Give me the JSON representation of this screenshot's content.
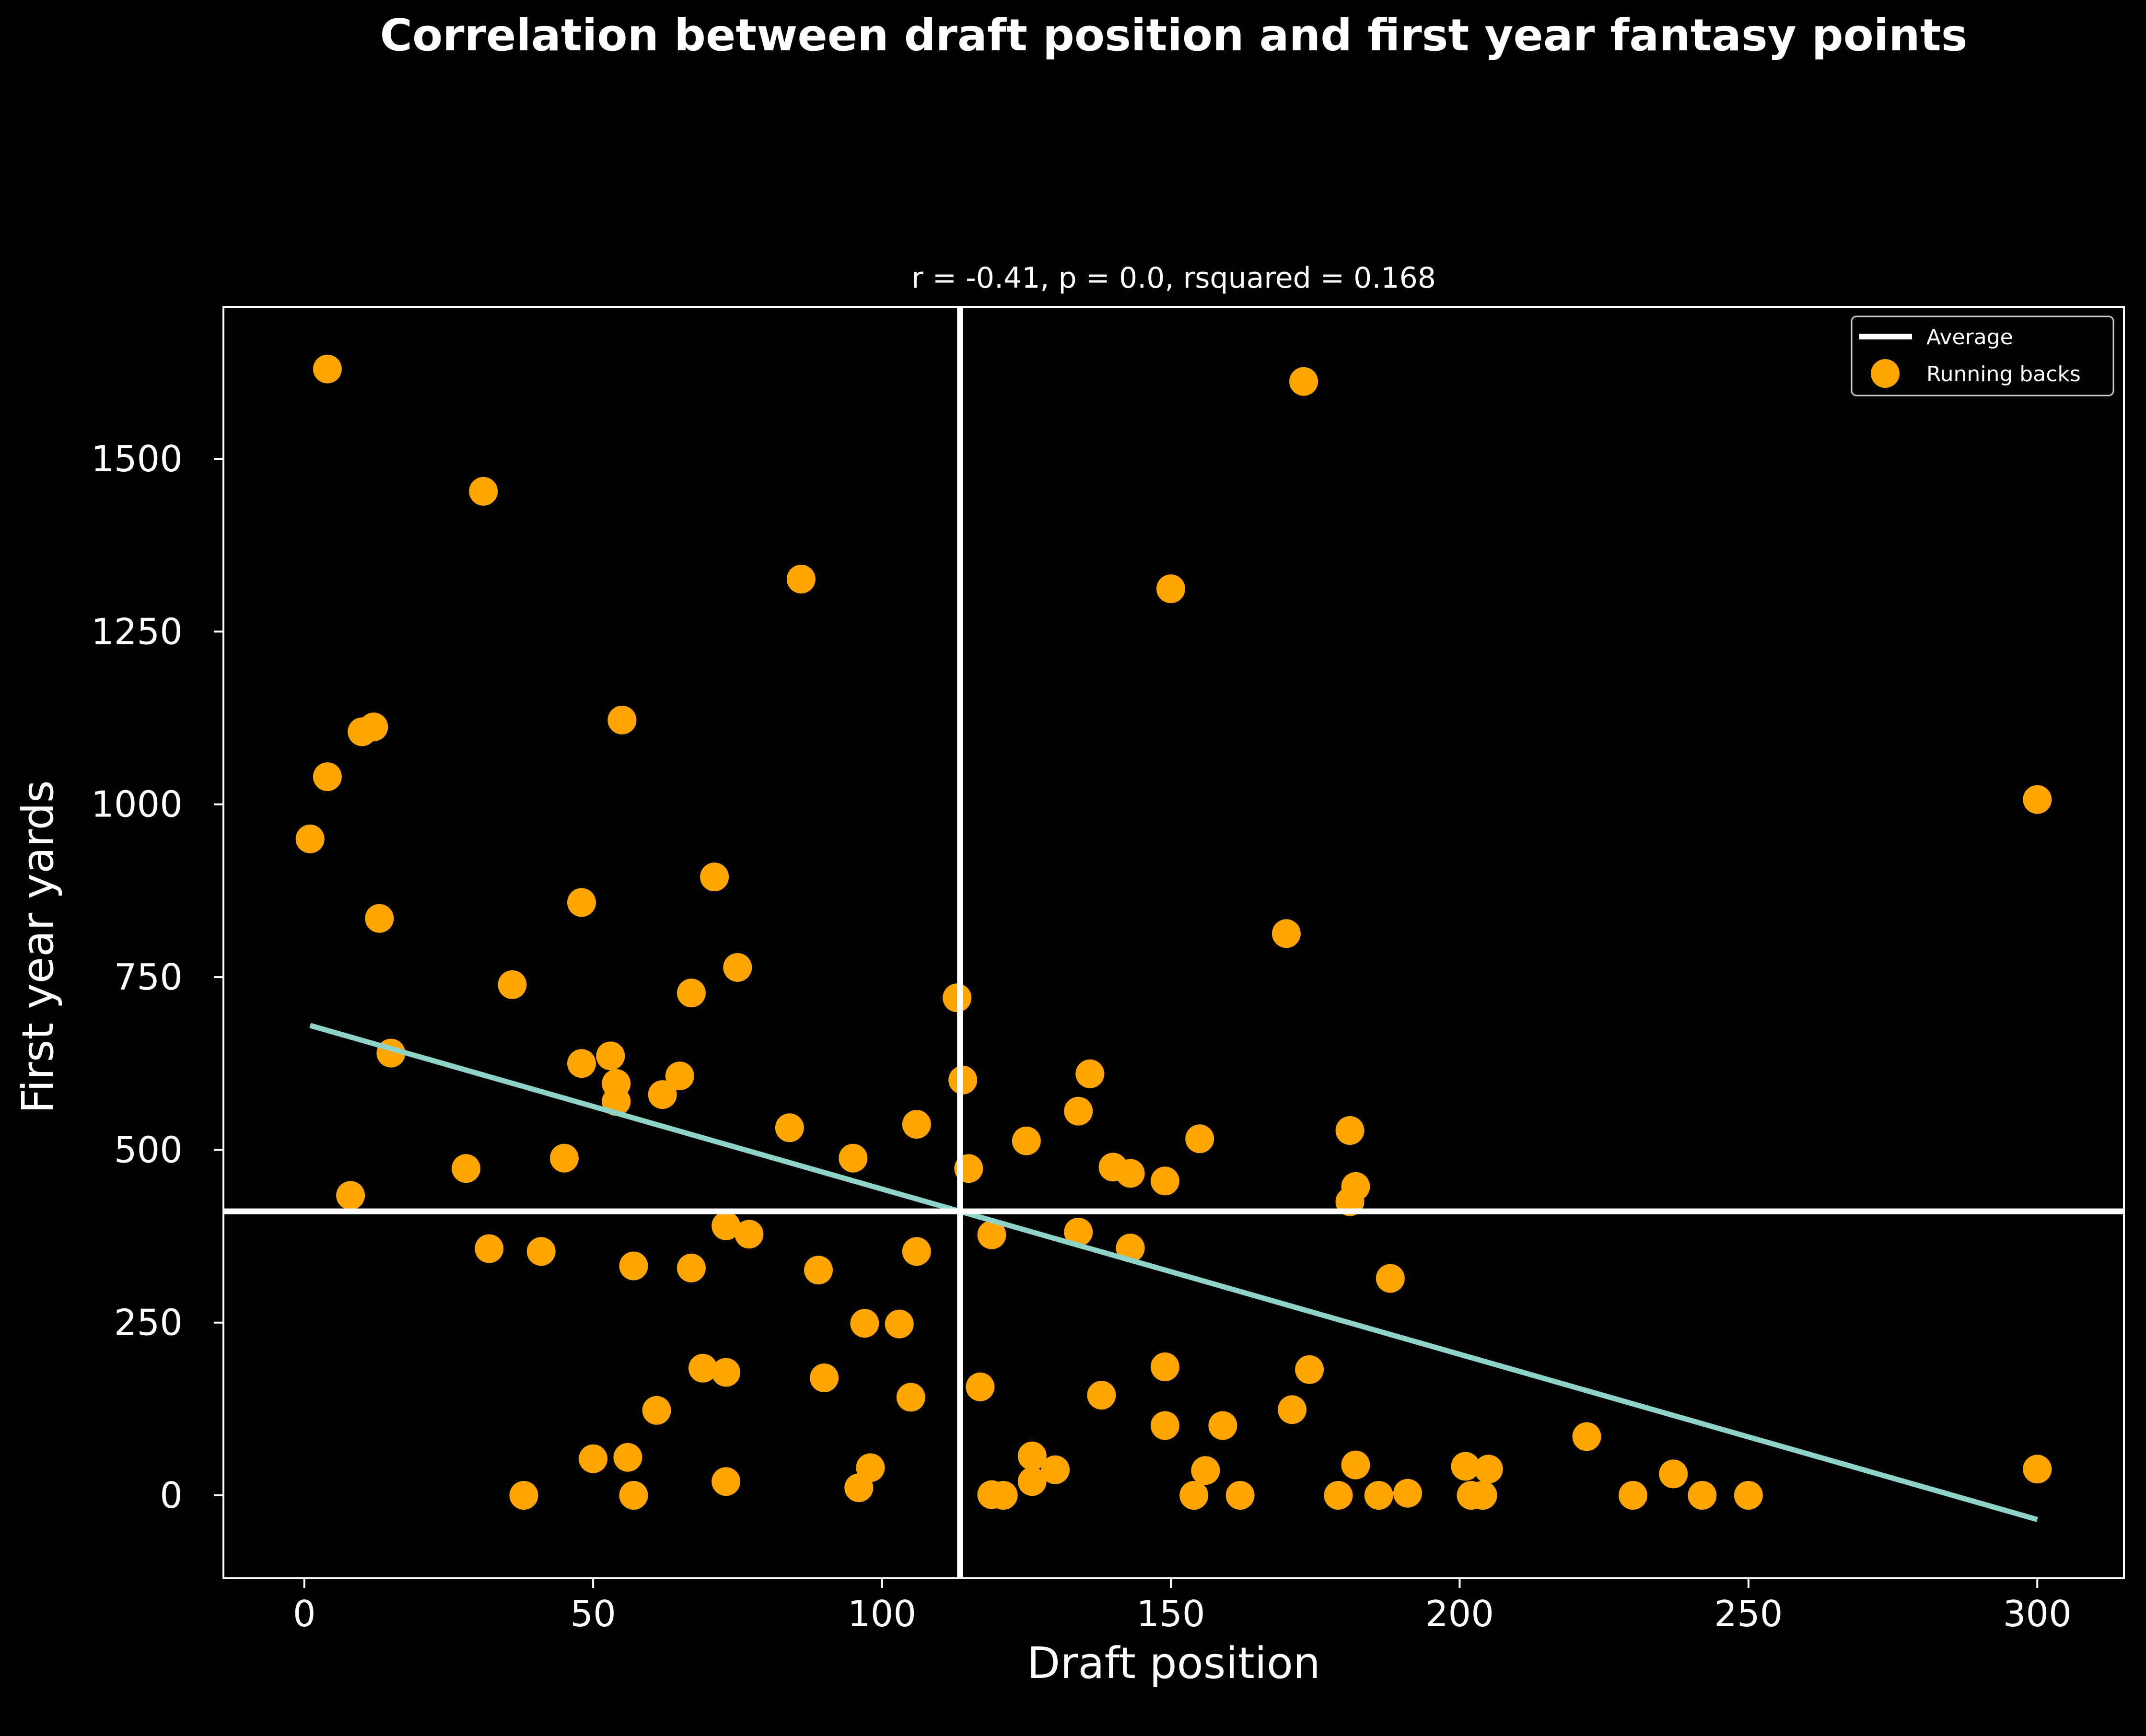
{
  "chart_data": {
    "type": "scatter",
    "title": "Correlation between draft position and first year fantasy points",
    "subtitle": "r = -0.41, p = 0.0, rsquared = 0.168",
    "xlabel": "Draft position",
    "ylabel": "First year yards",
    "xlim": [
      -14,
      315
    ],
    "ylim": [
      -120,
      1720
    ],
    "xticks": [
      0,
      50,
      100,
      150,
      200,
      250,
      300
    ],
    "yticks": [
      0,
      250,
      500,
      750,
      1000,
      1250,
      1500
    ],
    "grid": false,
    "legend_position": "top-right",
    "legend": {
      "average_label": "Average",
      "scatter_label": "Running backs"
    },
    "average": {
      "x": 113.5,
      "y": 411
    },
    "trendline": {
      "x": [
        1,
        300
      ],
      "y": [
        680,
        -35
      ]
    },
    "colors": {
      "background": "#000000",
      "points": "#ffa500",
      "trendline": "#8dd3c7",
      "average": "#ffffff",
      "axes": "#ffffff"
    },
    "series": [
      {
        "name": "Running backs",
        "points": [
          [
            4,
            1630
          ],
          [
            31,
            1453
          ],
          [
            86,
            1326
          ],
          [
            150,
            1312
          ],
          [
            173,
            1612
          ],
          [
            300,
            1007
          ],
          [
            10,
            1105
          ],
          [
            12,
            1112
          ],
          [
            55,
            1122
          ],
          [
            4,
            1040
          ],
          [
            1,
            950
          ],
          [
            71,
            895
          ],
          [
            13,
            835
          ],
          [
            48,
            858
          ],
          [
            170,
            813
          ],
          [
            36,
            739
          ],
          [
            75,
            764
          ],
          [
            67,
            727
          ],
          [
            113,
            720
          ],
          [
            15,
            640
          ],
          [
            53,
            636
          ],
          [
            48,
            625
          ],
          [
            65,
            607
          ],
          [
            54,
            596
          ],
          [
            62,
            580
          ],
          [
            54,
            570
          ],
          [
            114,
            601
          ],
          [
            136,
            610
          ],
          [
            134,
            556
          ],
          [
            84,
            532
          ],
          [
            106,
            537
          ],
          [
            155,
            516
          ],
          [
            125,
            513
          ],
          [
            181,
            528
          ],
          [
            28,
            473
          ],
          [
            45,
            488
          ],
          [
            95,
            488
          ],
          [
            115,
            473
          ],
          [
            140,
            475
          ],
          [
            143,
            466
          ],
          [
            149,
            455
          ],
          [
            182,
            447
          ],
          [
            181,
            425
          ],
          [
            8,
            434
          ],
          [
            73,
            390
          ],
          [
            77,
            378
          ],
          [
            119,
            377
          ],
          [
            134,
            381
          ],
          [
            32,
            357
          ],
          [
            41,
            353
          ],
          [
            106,
            353
          ],
          [
            143,
            358
          ],
          [
            57,
            332
          ],
          [
            67,
            329
          ],
          [
            89,
            326
          ],
          [
            188,
            314
          ],
          [
            97,
            249
          ],
          [
            103,
            248
          ],
          [
            69,
            184
          ],
          [
            73,
            178
          ],
          [
            90,
            170
          ],
          [
            149,
            186
          ],
          [
            174,
            182
          ],
          [
            61,
            123
          ],
          [
            105,
            142
          ],
          [
            117,
            157
          ],
          [
            138,
            145
          ],
          [
            171,
            124
          ],
          [
            149,
            101
          ],
          [
            159,
            101
          ],
          [
            50,
            53
          ],
          [
            56,
            55
          ],
          [
            126,
            57
          ],
          [
            98,
            40
          ],
          [
            130,
            37
          ],
          [
            156,
            36
          ],
          [
            182,
            44
          ],
          [
            201,
            42
          ],
          [
            205,
            38
          ],
          [
            222,
            85
          ],
          [
            237,
            31
          ],
          [
            300,
            38
          ],
          [
            73,
            20
          ],
          [
            96,
            11
          ],
          [
            126,
            20
          ],
          [
            38,
            0
          ],
          [
            57,
            0
          ],
          [
            119,
            1
          ],
          [
            121,
            0
          ],
          [
            154,
            0
          ],
          [
            162,
            0
          ],
          [
            179,
            0
          ],
          [
            186,
            0
          ],
          [
            191,
            3
          ],
          [
            202,
            0
          ],
          [
            204,
            0
          ],
          [
            230,
            0
          ],
          [
            242,
            0
          ],
          [
            250,
            0
          ]
        ]
      }
    ]
  }
}
